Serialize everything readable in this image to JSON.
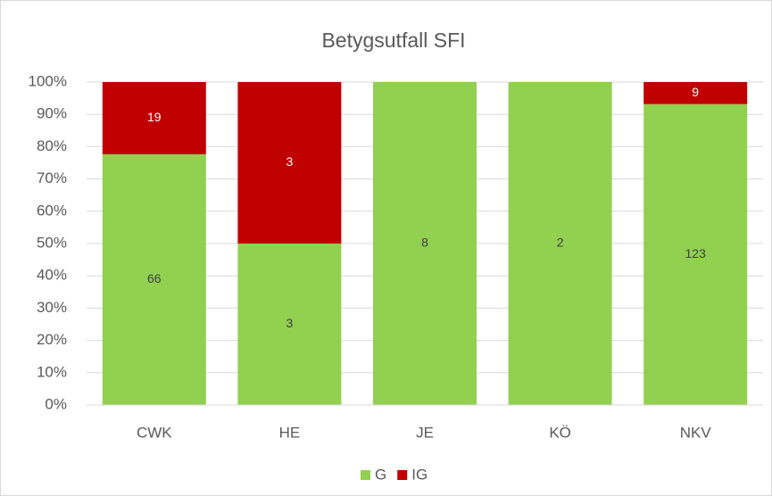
{
  "chart_data": {
    "type": "bar",
    "stacking": "percent",
    "title": "Betygsutfall SFI",
    "categories": [
      "CWK",
      "HE",
      "JE",
      "KÖ",
      "NKV"
    ],
    "series": [
      {
        "name": "G",
        "color": "#92d050",
        "values": [
          66,
          3,
          8,
          2,
          123
        ]
      },
      {
        "name": "IG",
        "color": "#c00000",
        "values": [
          19,
          3,
          0,
          0,
          9
        ]
      }
    ],
    "ylim": [
      0,
      100
    ],
    "yticks": [
      {
        "value": 0,
        "label": "0%"
      },
      {
        "value": 10,
        "label": "10%"
      },
      {
        "value": 20,
        "label": "20%"
      },
      {
        "value": 30,
        "label": "30%"
      },
      {
        "value": 40,
        "label": "40%"
      },
      {
        "value": 50,
        "label": "50%"
      },
      {
        "value": 60,
        "label": "60%"
      },
      {
        "value": 70,
        "label": "70%"
      },
      {
        "value": 80,
        "label": "80%"
      },
      {
        "value": 90,
        "label": "90%"
      },
      {
        "value": 100,
        "label": "100%"
      }
    ],
    "grid": true,
    "legend": "bottom"
  }
}
